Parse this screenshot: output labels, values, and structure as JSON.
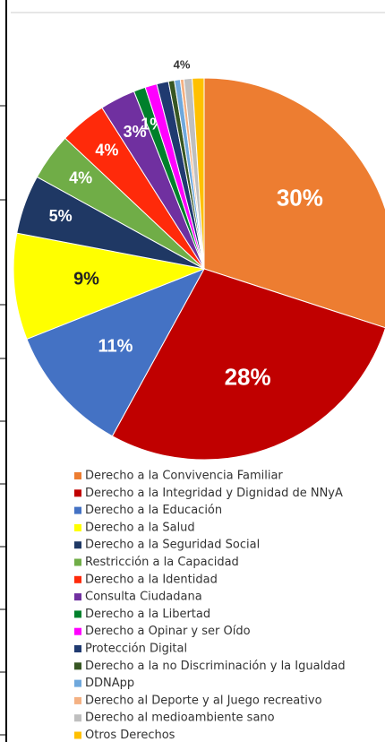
{
  "chart_data": {
    "type": "pie",
    "categories": [
      "Derecho a la Convivencia Familiar",
      "Derecho a la Integridad y Dignidad de NNyA",
      "Derecho a la Educación",
      "Derecho a la Salud",
      "Derecho a la Seguridad Social",
      "Restricción a la Capacidad",
      "Derecho a la Identidad",
      "Consulta Ciudadana",
      "Derecho a la Libertad",
      "Derecho a Opinar y ser Oído",
      "Protección Digital",
      "Derecho a la no Discriminación y la Igualdad",
      "DDNApp",
      "Derecho al Deporte y al Juego recreativo",
      "Derecho al medioambiente sano",
      "Otros Derechos"
    ],
    "values": [
      30,
      28,
      11,
      9,
      5,
      4,
      4,
      3,
      1,
      1,
      1,
      0.5,
      0.5,
      0.3,
      0.7,
      1
    ],
    "value_labels": [
      "30%",
      "28%",
      "11%",
      "9%",
      "5%",
      "4%",
      "4%",
      "3%",
      "1%",
      null,
      null,
      null,
      null,
      null,
      null,
      null
    ],
    "colors": [
      "#ed7d31",
      "#c00000",
      "#4472c4",
      "#ffff00",
      "#1f3864",
      "#70ad47",
      "#ff2a0a",
      "#7030a0",
      "#00802b",
      "#ff00ff",
      "#203a70",
      "#375623",
      "#6fa8dc",
      "#f4b183",
      "#bfbfbf",
      "#ffc000"
    ],
    "annotations": [
      {
        "text": "4%"
      }
    ]
  }
}
